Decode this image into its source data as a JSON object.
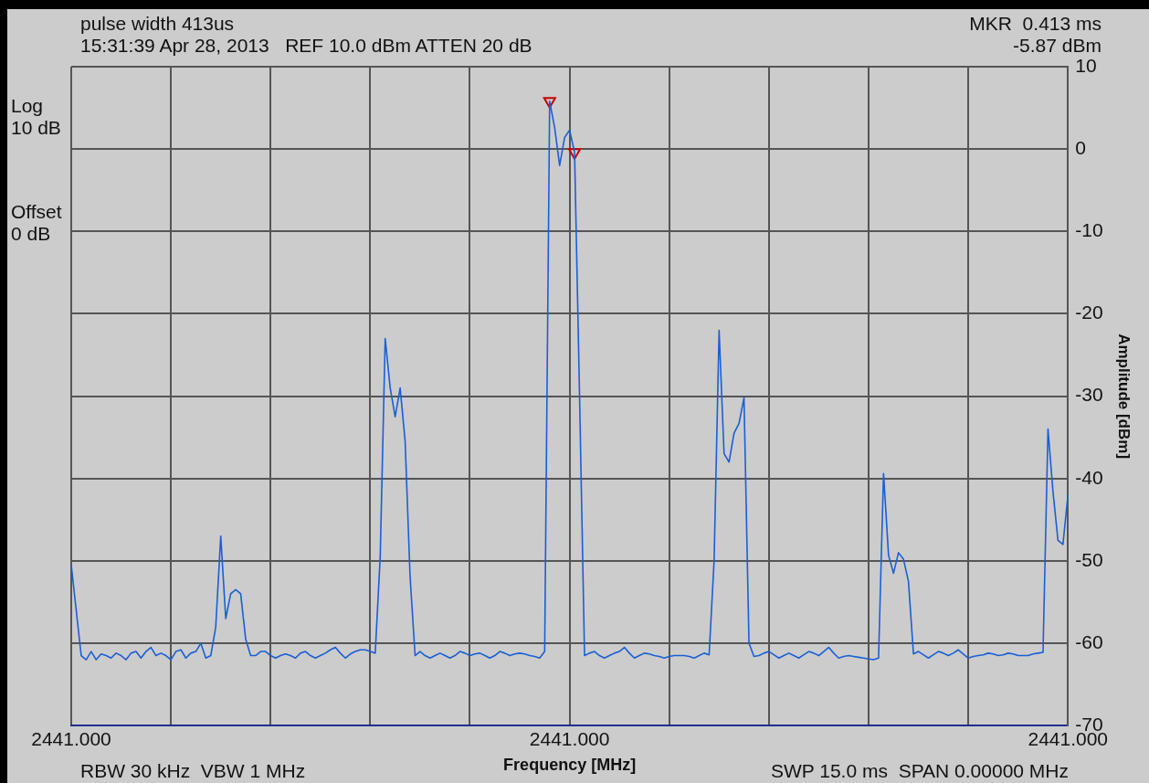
{
  "chart_data": {
    "type": "line",
    "xlabel": "Frequency [MHz]",
    "ylabel": "Amplitude [dBm]",
    "annotations": [
      "pulse width 413us",
      "15:31:39 Apr 28, 2013   REF 10.0 dBm ATTEN 20 dB",
      "MKR  0.413 ms",
      "-5.87 dBm",
      "Log\n10 dB",
      "Offset\n0 dB",
      "RBW 30 kHz  VBW 1 MHz",
      "SWP 15.0 ms  SPAN 0.00000 MHz"
    ],
    "categories": [
      "2441.000",
      null,
      null,
      null,
      null,
      null,
      null,
      null,
      null,
      null,
      null,
      null,
      null,
      null,
      null,
      null,
      null,
      null,
      null,
      null,
      null,
      null,
      null,
      null,
      null,
      null,
      null,
      null,
      null,
      null,
      null,
      null,
      null,
      null,
      null,
      null,
      null,
      null,
      null,
      null,
      null,
      null,
      null,
      null,
      null,
      null,
      null,
      null,
      null,
      null,
      null,
      null,
      null,
      null,
      null,
      null,
      null,
      null,
      null,
      null,
      null,
      null,
      null,
      null,
      null,
      null,
      null,
      null,
      null,
      null,
      null,
      null,
      null,
      null,
      null,
      null,
      null,
      null,
      null,
      null,
      null,
      null,
      null,
      null,
      null,
      null,
      null,
      null,
      null,
      null,
      null,
      null,
      null,
      null,
      null,
      null,
      null,
      null,
      null,
      null,
      "2441.000",
      null,
      null,
      null,
      null,
      null,
      null,
      null,
      null,
      null,
      null,
      null,
      null,
      null,
      null,
      null,
      null,
      null,
      null,
      null,
      null,
      null,
      null,
      null,
      null,
      null,
      null,
      null,
      null,
      null,
      null,
      null,
      null,
      null,
      null,
      null,
      null,
      null,
      null,
      null,
      null,
      null,
      null,
      null,
      null,
      null,
      null,
      null,
      null,
      null,
      null,
      null,
      null,
      null,
      null,
      null,
      null,
      null,
      null,
      null,
      null,
      null,
      null,
      null,
      null,
      null,
      null,
      null,
      null,
      null,
      null,
      null,
      null,
      null,
      null,
      null,
      null,
      null,
      null,
      null,
      null,
      null,
      null,
      null,
      null,
      null,
      null,
      null,
      null,
      null,
      null,
      null,
      null,
      null,
      null,
      null,
      null,
      null,
      null,
      null,
      "2441.000"
    ],
    "ylim": [
      -70,
      10
    ],
    "yticks": [
      -70,
      -60,
      -50,
      -40,
      -30,
      -20,
      -10,
      0,
      10
    ],
    "grid": true,
    "legend": false,
    "series": [
      {
        "color": "#1a5fd6",
        "marker": "none",
        "line_style": "solid",
        "values": [
          -50.5,
          -56,
          -61.5,
          -62,
          -61,
          -62,
          -61.3,
          -61.5,
          -61.8,
          -61.2,
          -61.5,
          -62,
          -61.2,
          -61,
          -61.8,
          -61,
          -60.5,
          -61.5,
          -61.2,
          -61.5,
          -62,
          -61,
          -60.8,
          -61.8,
          -61.2,
          -61,
          -60,
          -61.8,
          -61.5,
          -58,
          -47,
          -57,
          -54,
          -53.5,
          -54,
          -59.5,
          -61.5,
          -61.5,
          -61,
          -61,
          -61.5,
          -61.8,
          -61.5,
          -61.3,
          -61.5,
          -61.8,
          -61.2,
          -61,
          -61.5,
          -61.8,
          -61.5,
          -61.2,
          -60.8,
          -60.5,
          -61.2,
          -61.8,
          -61.3,
          -61,
          -60.8,
          -60.8,
          -61,
          -61.2,
          -49.5,
          -23,
          -29,
          -32.5,
          -29,
          -35.5,
          -52,
          -61.5,
          -61,
          -61.5,
          -61.8,
          -61.5,
          -61.2,
          -61.5,
          -61.8,
          -61.5,
          -61,
          -61.2,
          -61.5,
          -61.3,
          -61.2,
          -61.5,
          -61.8,
          -61.5,
          -61,
          -61.2,
          -61.5,
          -61.3,
          -61.2,
          -61.3,
          -61.5,
          -61.6,
          -61.8,
          -61,
          5.8,
          2.6,
          -2,
          1.4,
          2.3,
          -0.4,
          -29.9,
          -61.5,
          -61.2,
          -61,
          -61.5,
          -61.8,
          -61.5,
          -61.2,
          -61,
          -60.5,
          -61.2,
          -61.8,
          -61.5,
          -61.2,
          -61.3,
          -61.5,
          -61.6,
          -61.8,
          -61.6,
          -61.5,
          -61.5,
          -61.5,
          -61.6,
          -61.8,
          -61.5,
          -61.2,
          -61.4,
          -50,
          -22,
          -37,
          -38,
          -34.5,
          -33.3,
          -30.2,
          -60,
          -61.6,
          -61.5,
          -61.2,
          -61,
          -61.4,
          -61.8,
          -61.5,
          -61.2,
          -61.5,
          -61.8,
          -61.4,
          -61,
          -61.2,
          -61.5,
          -61,
          -60.5,
          -61.2,
          -61.8,
          -61.6,
          -61.5,
          -61.6,
          -61.7,
          -61.8,
          -61.9,
          -62,
          -61.8,
          -39.4,
          -49.3,
          -51.5,
          -49,
          -49.8,
          -52.5,
          -61.3,
          -61,
          -61.4,
          -61.8,
          -61.4,
          -61,
          -61.2,
          -61.5,
          -61.2,
          -60.8,
          -61.3,
          -61.8,
          -61.6,
          -61.5,
          -61.4,
          -61.2,
          -61.3,
          -61.5,
          -61.4,
          -61.2,
          -61.3,
          -61.5,
          -61.5,
          -61.5,
          -61.3,
          -61.2,
          -61.1,
          -34,
          -41.6,
          -47.5,
          -48,
          -42
        ]
      },
      {
        "type": "scatter",
        "color": "#cc0000",
        "marker": "triangle",
        "values": [
          null,
          null,
          null,
          null,
          null,
          null,
          null,
          null,
          null,
          null,
          null,
          null,
          null,
          null,
          null,
          null,
          null,
          null,
          null,
          null,
          null,
          null,
          null,
          null,
          null,
          null,
          null,
          null,
          null,
          null,
          null,
          null,
          null,
          null,
          null,
          null,
          null,
          null,
          null,
          null,
          null,
          null,
          null,
          null,
          null,
          null,
          null,
          null,
          null,
          null,
          null,
          null,
          null,
          null,
          null,
          null,
          null,
          null,
          null,
          null,
          null,
          null,
          null,
          null,
          null,
          null,
          null,
          null,
          null,
          null,
          null,
          null,
          null,
          null,
          null,
          null,
          null,
          null,
          null,
          null,
          null,
          null,
          null,
          null,
          null,
          null,
          null,
          null,
          null,
          null,
          null,
          null,
          null,
          null,
          null,
          null,
          5.8,
          null,
          null,
          null,
          null,
          -0.4,
          null,
          null,
          null,
          null,
          null,
          null,
          null,
          null,
          null,
          null,
          null,
          null,
          null,
          null,
          null,
          null,
          null,
          null,
          null,
          null,
          null,
          null,
          null,
          null,
          null,
          null,
          null,
          null,
          null,
          null,
          null,
          null,
          null,
          null,
          null,
          null,
          null,
          null,
          null,
          null,
          null,
          null,
          null,
          null,
          null,
          null,
          null,
          null,
          null,
          null,
          null,
          null,
          null,
          null,
          null,
          null,
          null,
          null,
          null,
          null,
          null,
          null,
          null,
          null,
          null,
          null,
          null,
          null,
          null,
          null,
          null,
          null,
          null,
          null,
          null,
          null,
          null,
          null,
          null,
          null,
          null,
          null,
          null,
          null,
          null,
          null,
          null,
          null,
          null,
          null,
          null,
          null,
          null,
          null,
          null,
          null,
          null,
          null,
          null
        ]
      }
    ]
  }
}
